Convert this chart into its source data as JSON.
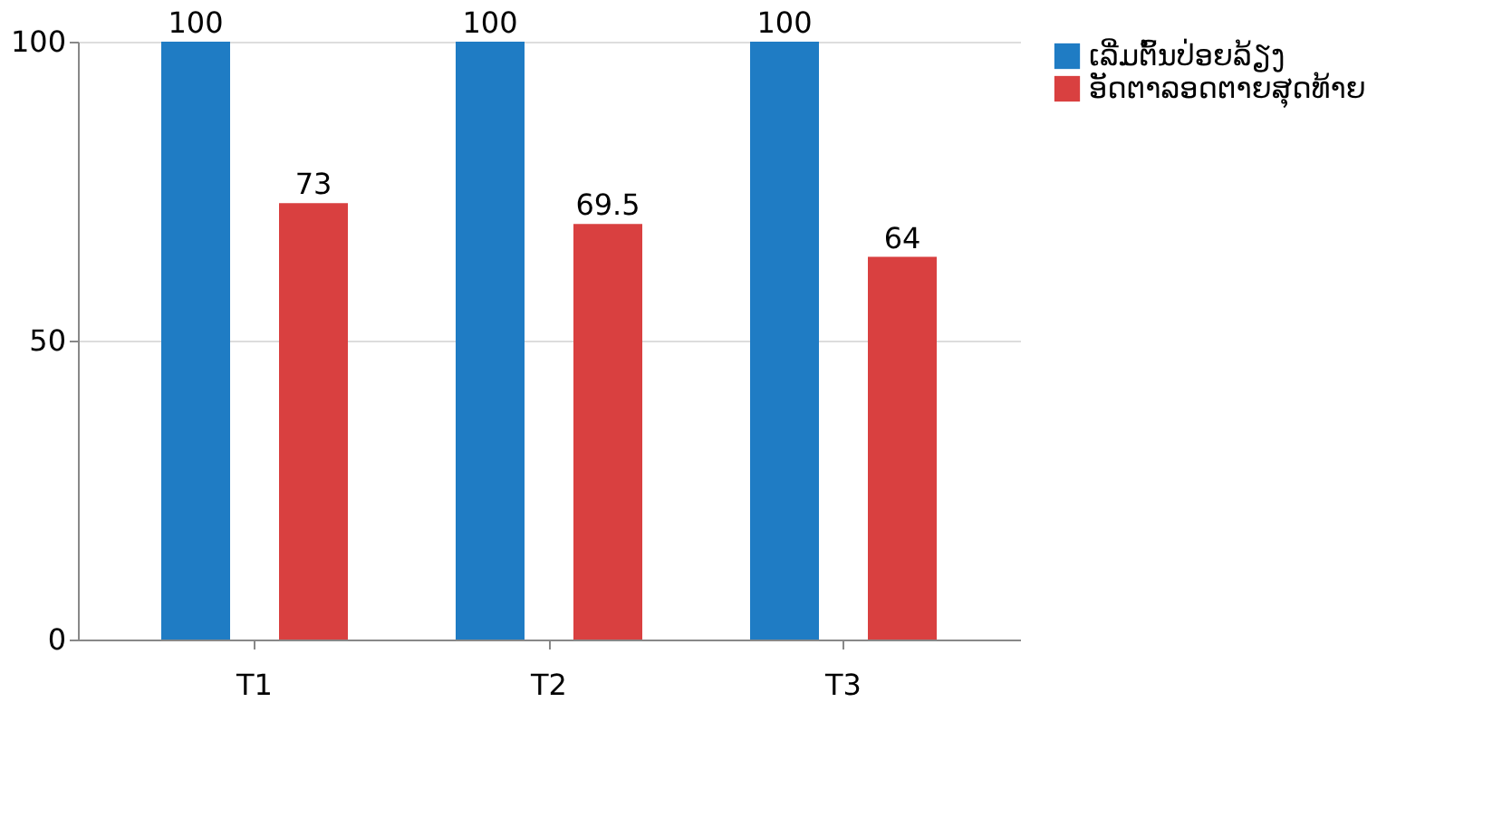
{
  "chart_data": {
    "type": "bar",
    "categories": [
      "T1",
      "T2",
      "T3"
    ],
    "series": [
      {
        "name": "ເລີ່ມຕົ້ນປ່ອຍລ້ຽງ",
        "color": "#1f7cc4",
        "values": [
          100,
          100,
          100
        ]
      },
      {
        "name": "ອັດຕາລອດຕາຍສຸດທ້າຍ",
        "color": "#d94040",
        "values": [
          73,
          69.5,
          64
        ]
      }
    ],
    "ylim": [
      0,
      100
    ],
    "yticks": [
      0,
      50,
      100
    ],
    "grid": "y",
    "legend": "right",
    "data_labels": true
  }
}
